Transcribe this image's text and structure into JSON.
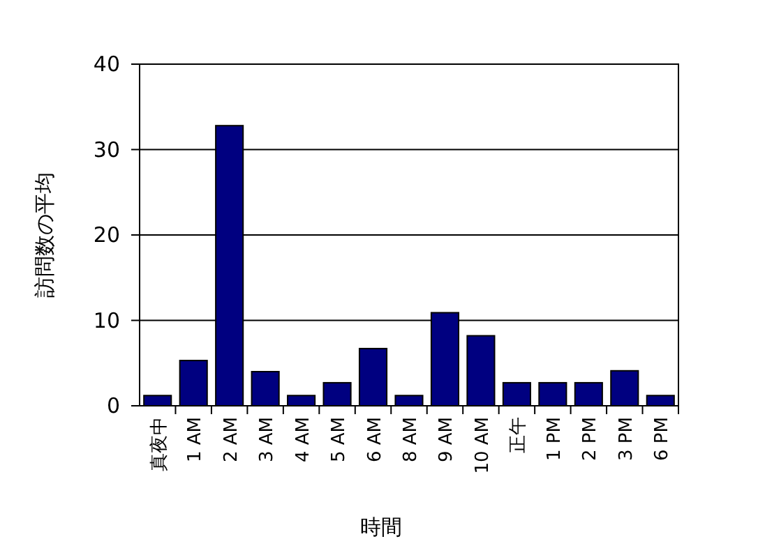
{
  "chart_data": {
    "type": "bar",
    "xlabel": "時間",
    "ylabel": "訪問数の平均",
    "categories": [
      "真夜中",
      "1 AM",
      "2 AM",
      "3 AM",
      "4 AM",
      "5 AM",
      "6 AM",
      "8 AM",
      "9 AM",
      "10 AM",
      "正午",
      "1 PM",
      "2 PM",
      "3 PM",
      "6 PM"
    ],
    "values": [
      1.2,
      5.3,
      32.8,
      4,
      1.2,
      2.7,
      6.7,
      1.2,
      10.9,
      8.2,
      2.7,
      2.7,
      2.7,
      4.1,
      1.2
    ],
    "color": "#000080",
    "ylim": [
      0,
      40
    ],
    "yticks": [
      0,
      10,
      20,
      30,
      40
    ],
    "grid": "y"
  }
}
